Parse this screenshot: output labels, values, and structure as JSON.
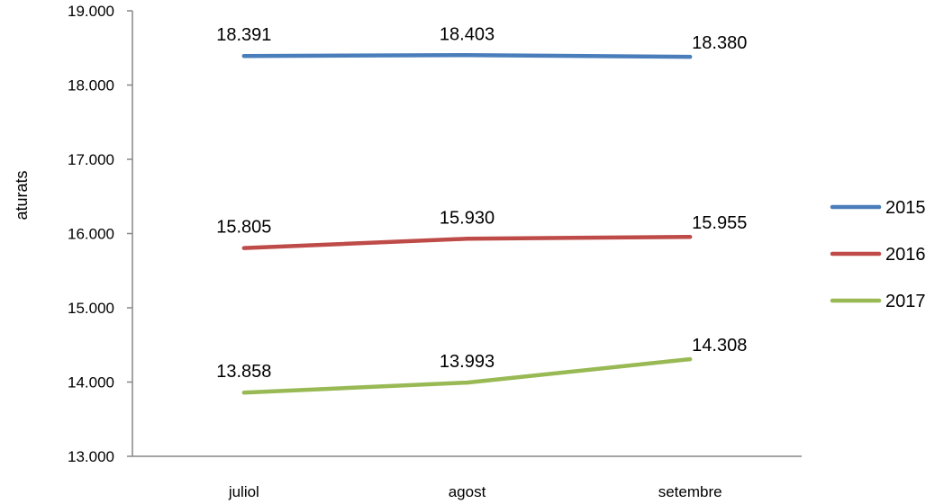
{
  "chart_data": {
    "type": "line",
    "categories": [
      "juliol",
      "agost",
      "setembre"
    ],
    "ylabel": "aturats",
    "ylim": [
      13000,
      19000
    ],
    "y_ticks": [
      13000,
      14000,
      15000,
      16000,
      17000,
      18000,
      19000
    ],
    "y_tick_labels": [
      "13.000",
      "14.000",
      "15.000",
      "16.000",
      "17.000",
      "18.000",
      "19.000"
    ],
    "grid": false,
    "legend_position": "right",
    "series": [
      {
        "name": "2015",
        "color": "#4a7ebb",
        "values": [
          18391,
          18403,
          18380
        ],
        "labels": [
          "18.391",
          "18.403",
          "18.380"
        ]
      },
      {
        "name": "2016",
        "color": "#be4b48",
        "values": [
          15805,
          15930,
          15955
        ],
        "labels": [
          "15.805",
          "15.930",
          "15.955"
        ]
      },
      {
        "name": "2017",
        "color": "#98b954",
        "values": [
          13858,
          13993,
          14308
        ],
        "labels": [
          "13.858",
          "13.993",
          "14.308"
        ]
      }
    ]
  }
}
